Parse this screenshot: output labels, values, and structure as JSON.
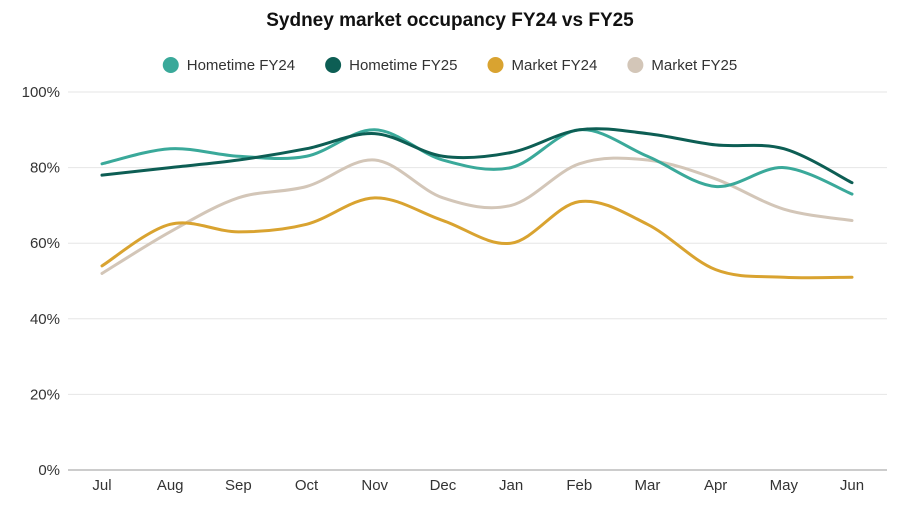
{
  "chart_data": {
    "type": "line",
    "title": "Sydney market occupancy FY24 vs FY25",
    "categories": [
      "Jul",
      "Aug",
      "Sep",
      "Oct",
      "Nov",
      "Dec",
      "Jan",
      "Feb",
      "Mar",
      "Apr",
      "May",
      "Jun"
    ],
    "ylim": [
      0,
      100
    ],
    "y_ticks": [
      "0%",
      "20%",
      "40%",
      "60%",
      "80%",
      "100%"
    ],
    "y_tick_values": [
      0,
      20,
      40,
      60,
      80,
      100
    ],
    "grid": true,
    "legend_position": "top-center",
    "series": [
      {
        "name": "Hometime FY24",
        "color": "#3aa99a",
        "values": [
          81,
          85,
          83,
          83,
          90,
          82,
          80,
          90,
          83,
          75,
          80,
          73
        ]
      },
      {
        "name": "Hometime FY25",
        "color": "#0d5e54",
        "values": [
          78,
          80,
          82,
          85,
          89,
          83,
          84,
          90,
          89,
          86,
          85,
          76
        ]
      },
      {
        "name": "Market FY24",
        "color": "#d9a330",
        "values": [
          54,
          65,
          63,
          65,
          72,
          66,
          60,
          71,
          65,
          53,
          51,
          51
        ]
      },
      {
        "name": "Market FY25",
        "color": "#d3c6b8",
        "values": [
          52,
          63,
          72,
          75,
          82,
          72,
          70,
          81,
          82,
          77,
          69,
          66
        ]
      }
    ]
  }
}
